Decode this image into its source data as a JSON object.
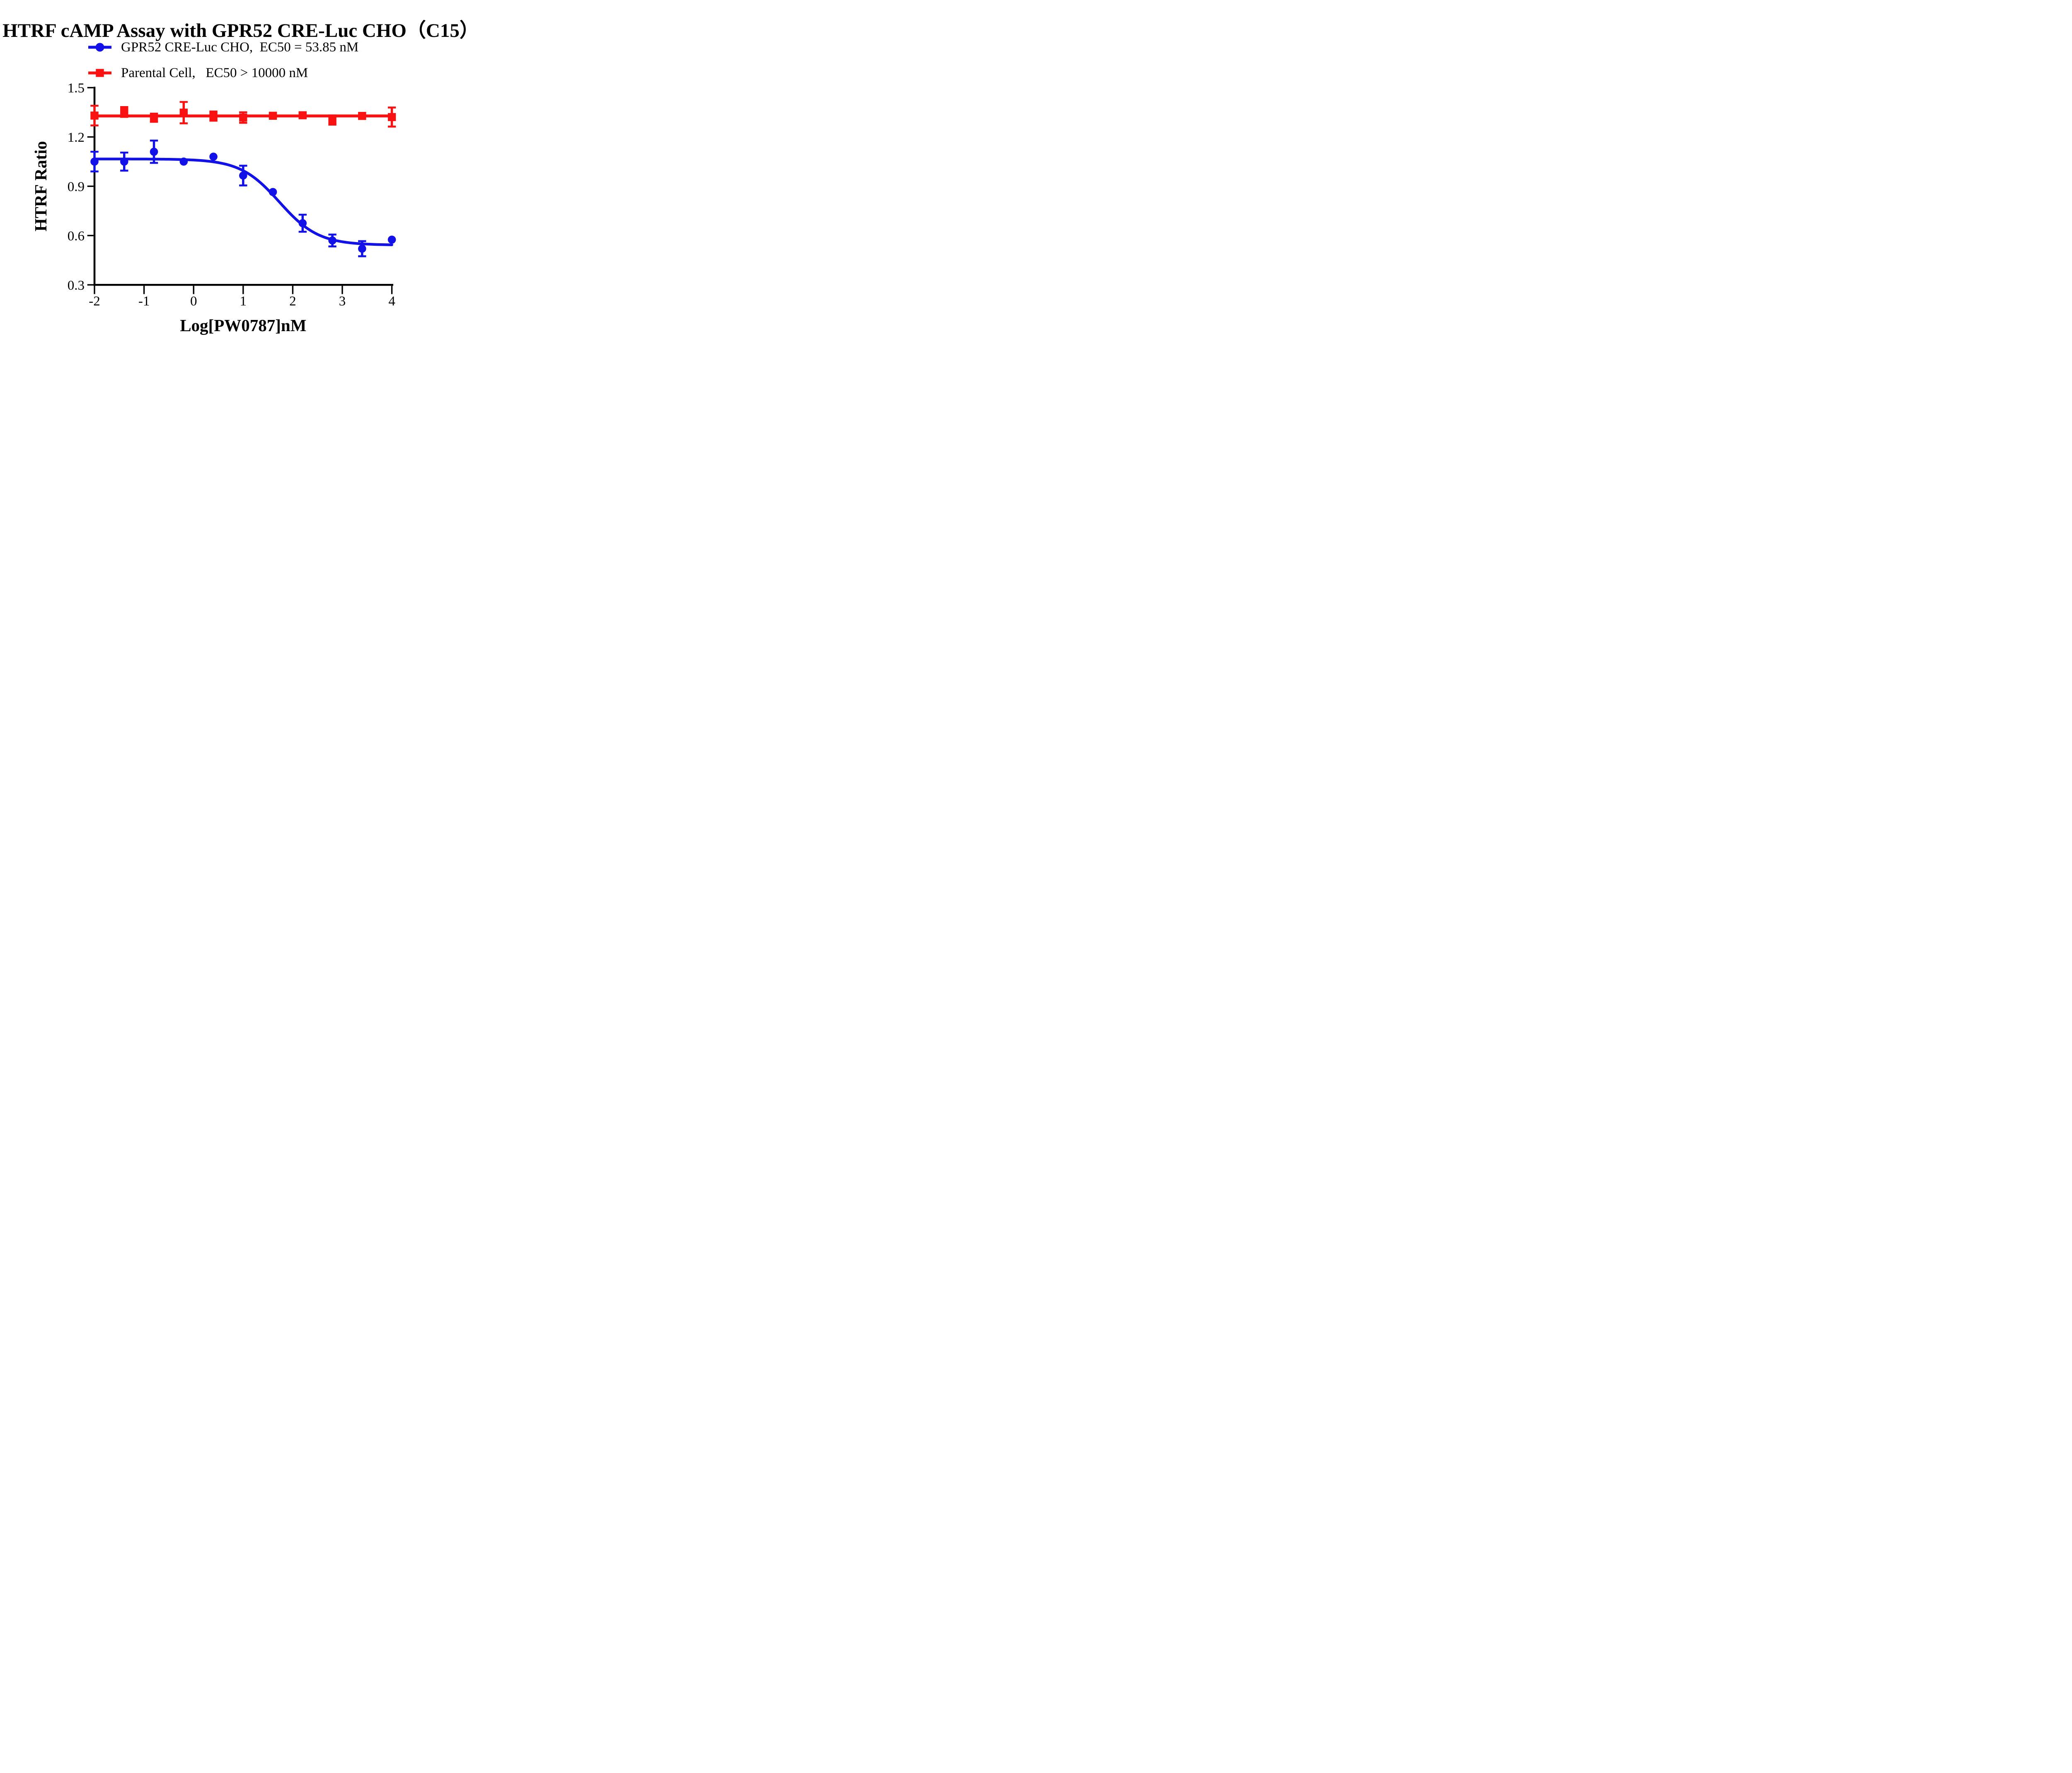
{
  "title": "HTRF cAMP Assay with GPR52 CRE-Luc CHO（C15）",
  "legend": {
    "items": [
      {
        "label": "GPR52 CRE-Luc CHO,  EC50 = 53.85 nM",
        "marker": "circle",
        "color": "#1111e8"
      },
      {
        "label": "Parental Cell,   EC50 > 10000 nM",
        "marker": "square",
        "color": "#fa1111"
      }
    ]
  },
  "chart_data": {
    "type": "scatter",
    "title": "HTRF cAMP Assay with GPR52 CRE-Luc CHO（C15）",
    "xlabel": "Log[PW0787]nM",
    "ylabel": "HTRF Ratio",
    "xlim": [
      -2,
      4
    ],
    "ylim": [
      0.3,
      1.5
    ],
    "xticks": [
      -2,
      -1,
      0,
      1,
      2,
      3,
      4
    ],
    "xtick_labels": [
      "-2",
      "-1",
      "0",
      "1",
      "2",
      "3",
      "4"
    ],
    "yticks": [
      0.3,
      0.6,
      0.9,
      1.2,
      1.5
    ],
    "ytick_labels": [
      "0.3",
      "0.6",
      "0.9",
      "1.2",
      "1.5"
    ],
    "grid": false,
    "legend_position": "above-plot-left",
    "x": [
      -2,
      -1.4,
      -0.8,
      -0.2,
      0.4,
      1,
      1.6,
      2.2,
      2.8,
      3.4,
      4
    ],
    "series": [
      {
        "name": "GPR52 CRE-Luc CHO",
        "ec50_label": "EC50 = 53.85 nM",
        "color": "#1111e8",
        "marker": "circle",
        "values": [
          1.05,
          1.05,
          1.11,
          1.05,
          1.08,
          0.965,
          0.865,
          0.675,
          0.57,
          0.52,
          0.575
        ],
        "errors": [
          0.06,
          0.055,
          0.068,
          0,
          0,
          0.06,
          0,
          0.052,
          0.036,
          0.046,
          0
        ],
        "fit": {
          "model": "4PL",
          "top": 1.066,
          "bottom": 0.542,
          "logEC50": 1.731,
          "hill": 1.1
        }
      },
      {
        "name": "Parental Cell",
        "ec50_label": "EC50 > 10000 nM",
        "color": "#fa1111",
        "marker": "square",
        "values": [
          1.33,
          1.352,
          1.317,
          1.348,
          1.327,
          1.318,
          1.329,
          1.332,
          1.303,
          1.328,
          1.321
        ],
        "errors": [
          0.06,
          0.03,
          0.025,
          0.065,
          0.028,
          0.032,
          0.015,
          0.015,
          0.028,
          0.015,
          0.058
        ],
        "fit": {
          "model": "flat",
          "value": 1.328
        }
      }
    ]
  }
}
